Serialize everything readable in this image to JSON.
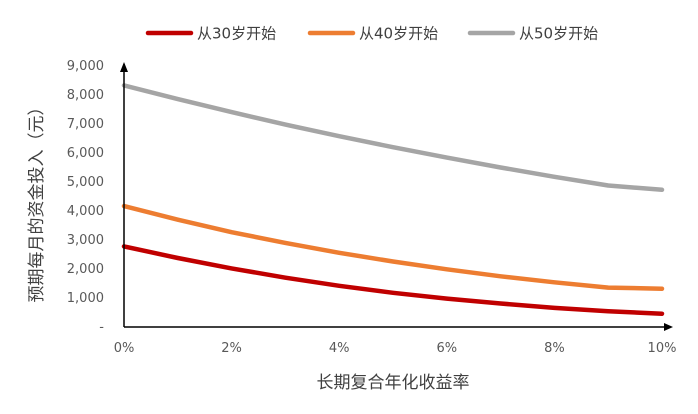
{
  "chart_data": {
    "type": "line",
    "xlabel": "长期复合年化收益率",
    "ylabel": "预期每月的资金投入（元）",
    "xlim": [
      0,
      10
    ],
    "ylim": [
      0,
      9000
    ],
    "x_ticks": [
      {
        "value": 0,
        "label": "0%"
      },
      {
        "value": 2,
        "label": "2%"
      },
      {
        "value": 4,
        "label": "4%"
      },
      {
        "value": 6,
        "label": "6%"
      },
      {
        "value": 8,
        "label": "8%"
      },
      {
        "value": 10,
        "label": "10%"
      }
    ],
    "y_ticks": [
      {
        "value": 0,
        "label": "-"
      },
      {
        "value": 1000,
        "label": "1,000"
      },
      {
        "value": 2000,
        "label": "2,000"
      },
      {
        "value": 3000,
        "label": "3,000"
      },
      {
        "value": 4000,
        "label": "4,000"
      },
      {
        "value": 5000,
        "label": "5,000"
      },
      {
        "value": 6000,
        "label": "6,000"
      },
      {
        "value": 7000,
        "label": "7,000"
      },
      {
        "value": 8000,
        "label": "8,000"
      },
      {
        "value": 9000,
        "label": "9,000"
      }
    ],
    "legend_position": "top",
    "grid": false,
    "x": [
      0,
      1,
      2,
      3,
      4,
      5,
      6,
      7,
      8,
      9,
      10
    ],
    "series": [
      {
        "name": "从30岁开始",
        "color": "#C00000",
        "values": [
          2780,
          2380,
          2020,
          1700,
          1420,
          1180,
          980,
          810,
          660,
          540,
          460
        ]
      },
      {
        "name": "从40岁开始",
        "color": "#ED7D31",
        "values": [
          4170,
          3700,
          3270,
          2900,
          2560,
          2260,
          1990,
          1750,
          1540,
          1360,
          1320
        ]
      },
      {
        "name": "从50岁开始",
        "color": "#A5A5A5",
        "values": [
          8330,
          7860,
          7410,
          6980,
          6580,
          6200,
          5840,
          5500,
          5180,
          4880,
          4730
        ]
      }
    ]
  }
}
